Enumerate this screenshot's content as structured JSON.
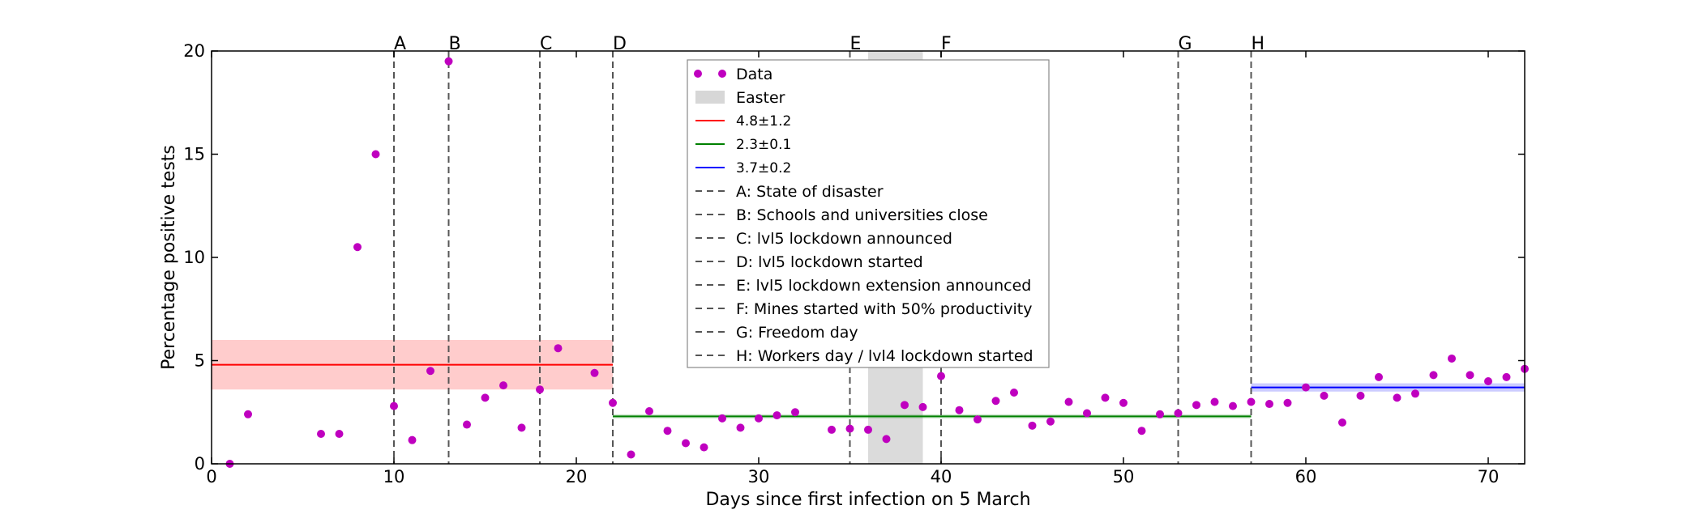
{
  "chart_data": {
    "type": "scatter",
    "xlabel": "Days since first infection on 5 March",
    "ylabel": "Percentage positive tests",
    "xlim": [
      0,
      72
    ],
    "ylim": [
      0,
      20
    ],
    "xticks": [
      0,
      10,
      20,
      30,
      40,
      50,
      60,
      70
    ],
    "yticks": [
      0,
      5,
      10,
      15,
      20
    ],
    "colors": {
      "data": "#bf00bf",
      "red": "#ff0000",
      "green": "#008000",
      "blue": "#0000ff",
      "easter": "#bdbdbd",
      "event_line": "#555555"
    },
    "series": [
      {
        "name": "Data",
        "points": [
          [
            1,
            0.0
          ],
          [
            2,
            2.4
          ],
          [
            6,
            1.45
          ],
          [
            7,
            1.45
          ],
          [
            8,
            10.5
          ],
          [
            9,
            15.0
          ],
          [
            10,
            2.8
          ],
          [
            11,
            1.15
          ],
          [
            12,
            4.5
          ],
          [
            13,
            19.5
          ],
          [
            14,
            1.9
          ],
          [
            15,
            3.2
          ],
          [
            16,
            3.8
          ],
          [
            17,
            1.75
          ],
          [
            18,
            3.6
          ],
          [
            19,
            5.6
          ],
          [
            21,
            4.4
          ],
          [
            22,
            2.95
          ],
          [
            23,
            0.45
          ],
          [
            24,
            2.55
          ],
          [
            25,
            1.6
          ],
          [
            26,
            1.0
          ],
          [
            27,
            0.8
          ],
          [
            28,
            2.2
          ],
          [
            29,
            1.75
          ],
          [
            30,
            2.2
          ],
          [
            31,
            2.35
          ],
          [
            32,
            2.5
          ],
          [
            34,
            1.65
          ],
          [
            35,
            1.7
          ],
          [
            36,
            1.65
          ],
          [
            37,
            1.2
          ],
          [
            38,
            2.85
          ],
          [
            39,
            2.75
          ],
          [
            40,
            4.25
          ],
          [
            41,
            2.6
          ],
          [
            42,
            2.15
          ],
          [
            43,
            3.05
          ],
          [
            44,
            3.45
          ],
          [
            45,
            1.85
          ],
          [
            46,
            2.05
          ],
          [
            47,
            3.0
          ],
          [
            48,
            2.45
          ],
          [
            49,
            3.2
          ],
          [
            50,
            2.95
          ],
          [
            51,
            1.6
          ],
          [
            52,
            2.4
          ],
          [
            53,
            2.45
          ],
          [
            54,
            2.85
          ],
          [
            55,
            3.0
          ],
          [
            56,
            2.8
          ],
          [
            57,
            3.0
          ],
          [
            58,
            2.9
          ],
          [
            59,
            2.95
          ],
          [
            60,
            3.7
          ],
          [
            61,
            3.3
          ],
          [
            62,
            2.0
          ],
          [
            63,
            3.3
          ],
          [
            64,
            4.2
          ],
          [
            65,
            3.2
          ],
          [
            66,
            3.4
          ],
          [
            67,
            4.3
          ],
          [
            68,
            5.1
          ],
          [
            69,
            4.3
          ],
          [
            70,
            4.0
          ],
          [
            71,
            4.2
          ],
          [
            72,
            4.6
          ]
        ]
      }
    ],
    "fits": [
      {
        "label": "4.8±1.2",
        "color": "#ff0000",
        "x": [
          0,
          22
        ],
        "mean": 4.8,
        "err": 1.2
      },
      {
        "label": "2.3±0.1",
        "color": "#008000",
        "x": [
          22,
          57
        ],
        "mean": 2.3,
        "err": 0.1
      },
      {
        "label": "3.7±0.2",
        "color": "#0000ff",
        "x": [
          57,
          72
        ],
        "mean": 3.7,
        "err": 0.2
      }
    ],
    "easter": {
      "label": "Easter",
      "x": [
        36,
        39
      ]
    },
    "events": [
      {
        "letter": "A",
        "x": 10,
        "text": "A: State of disaster"
      },
      {
        "letter": "B",
        "x": 13,
        "text": "B: Schools and universities close"
      },
      {
        "letter": "C",
        "x": 18,
        "text": "C: lvl5 lockdown announced"
      },
      {
        "letter": "D",
        "x": 22,
        "text": "D: lvl5 lockdown started"
      },
      {
        "letter": "E",
        "x": 35,
        "text": "E: lvl5 lockdown extension announced"
      },
      {
        "letter": "F",
        "x": 40,
        "text": "F: Mines started with 50% productivity"
      },
      {
        "letter": "G",
        "x": 53,
        "text": "G: Freedom day"
      },
      {
        "letter": "H",
        "x": 57,
        "text": "H: Workers day / lvl4 lockdown started"
      }
    ],
    "legend_position": "top-center"
  }
}
